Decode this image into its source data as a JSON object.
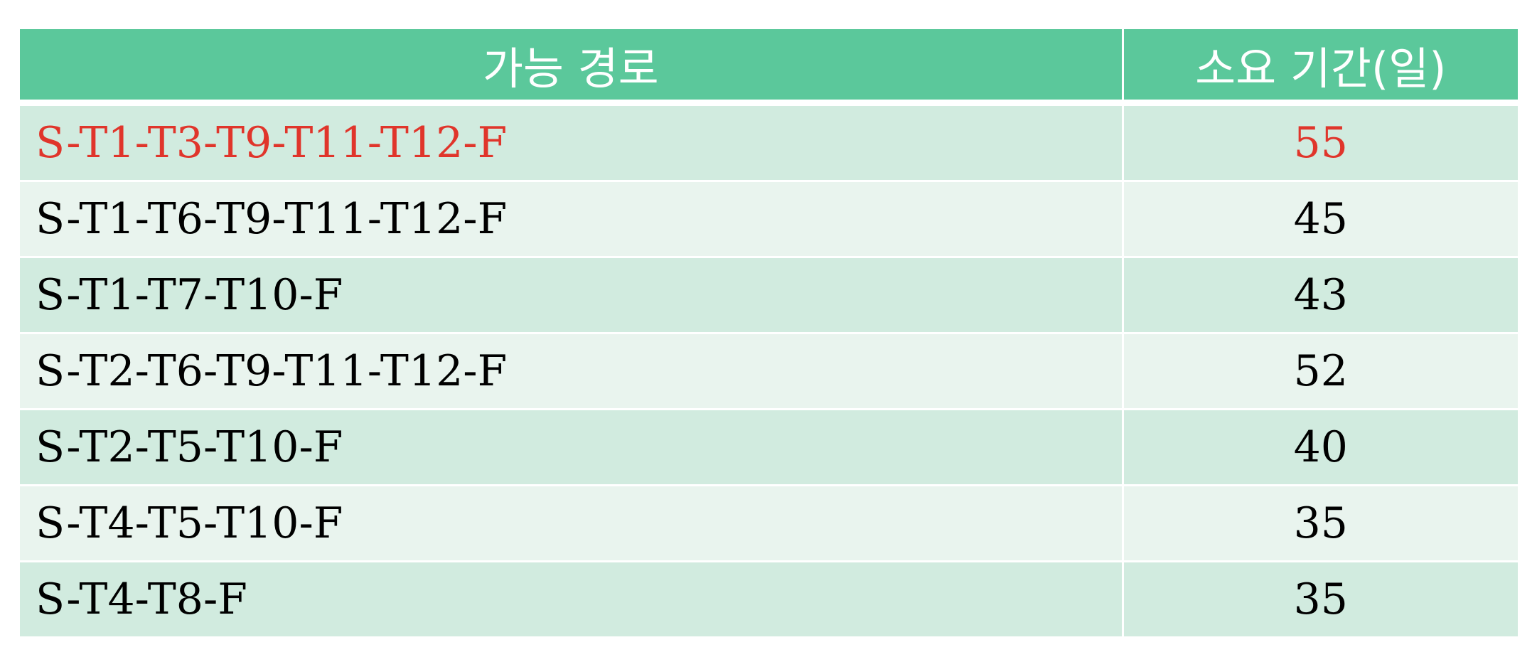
{
  "table": {
    "headers": {
      "path": "가능 경로",
      "days": "소요 기간(일)"
    },
    "rows": [
      {
        "path": "S-T1-T3-T9-T11-T12-F",
        "days": "55",
        "highlight": true
      },
      {
        "path": "S-T1-T6-T9-T11-T12-F",
        "days": "45",
        "highlight": false
      },
      {
        "path": "S-T1-T7-T10-F",
        "days": "43",
        "highlight": false
      },
      {
        "path": "S-T2-T6-T9-T11-T12-F",
        "days": "52",
        "highlight": false
      },
      {
        "path": "S-T2-T5-T10-F",
        "days": "40",
        "highlight": false
      },
      {
        "path": "S-T4-T5-T10-F",
        "days": "35",
        "highlight": false
      },
      {
        "path": "S-T4-T8-F",
        "days": "35",
        "highlight": false
      }
    ]
  },
  "colors": {
    "header_bg": "#5bc89b",
    "row_odd_bg": "#d1ebdf",
    "row_even_bg": "#e9f4ee",
    "highlight_text": "#e0352b"
  }
}
